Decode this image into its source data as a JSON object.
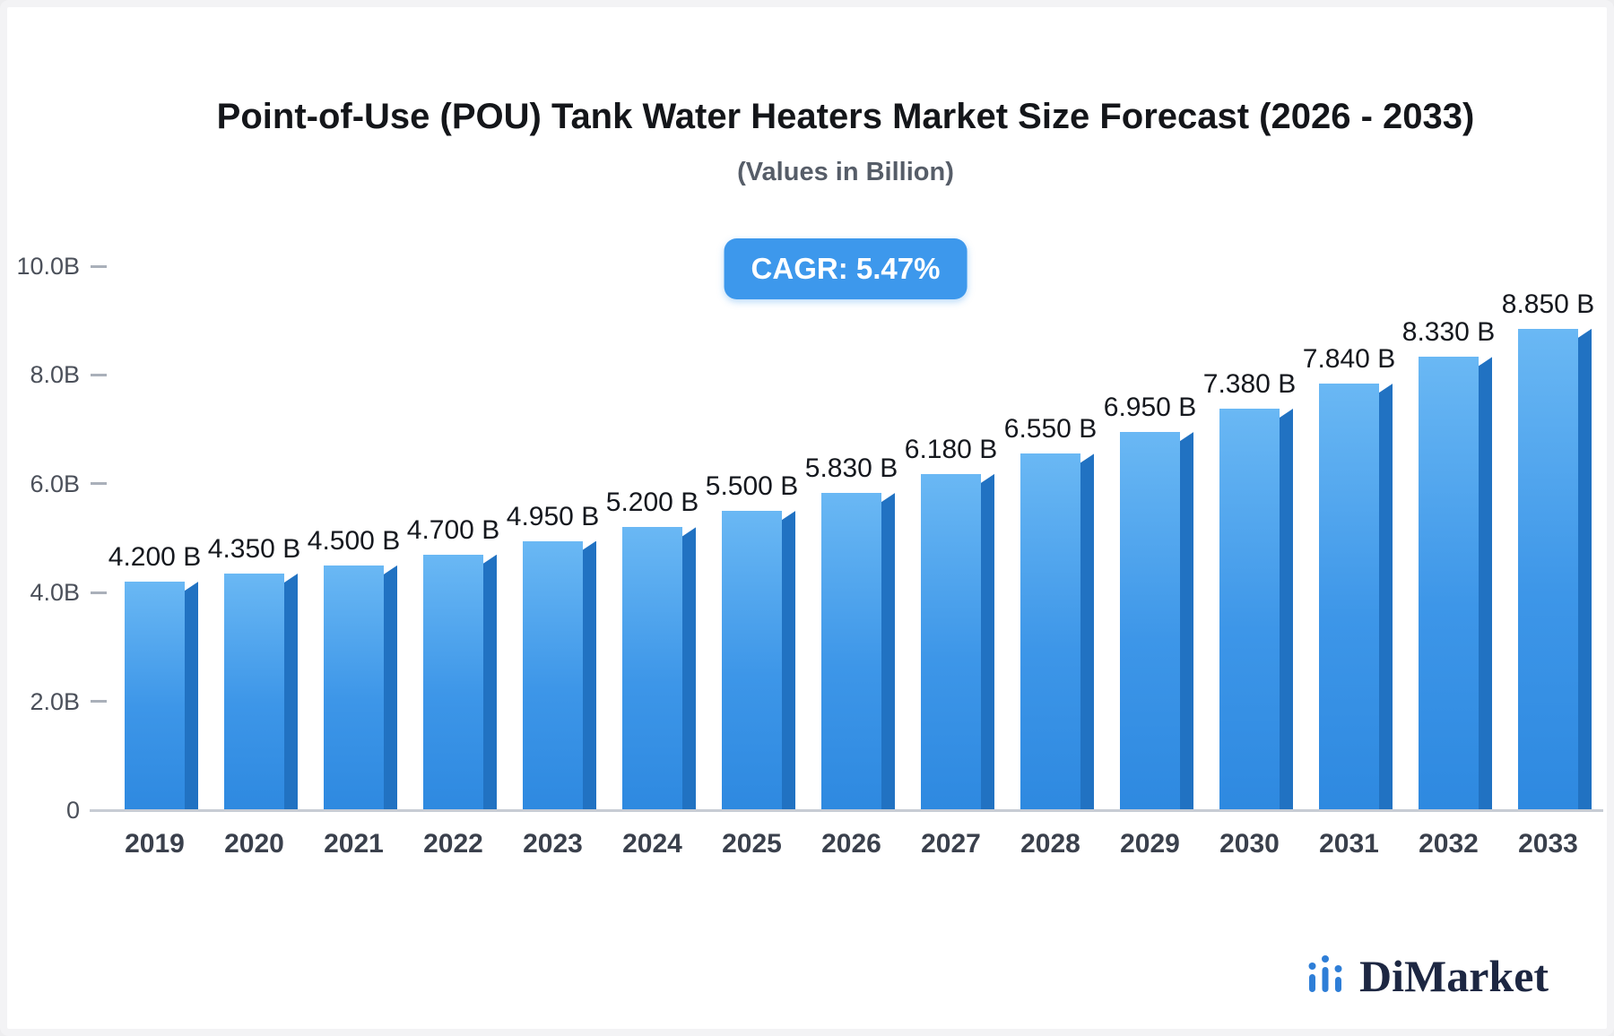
{
  "header": {
    "title": "Point-of-Use (POU) Tank Water Heaters Market Size Forecast (2026 - 2033)",
    "subtitle": "(Values in Billion)",
    "cagr_badge": "CAGR: 5.47%"
  },
  "brand": {
    "name": "DiMarket",
    "icon": "bar-chart-logo-icon",
    "icon_color": "#2e7ed7",
    "text_color": "#1d2742"
  },
  "chart_data": {
    "type": "bar",
    "title": "Point-of-Use (POU) Tank Water Heaters Market Size Forecast (2026 - 2033)",
    "subtitle": "(Values in Billion)",
    "annotation": "CAGR: 5.47%",
    "categories": [
      "2019",
      "2020",
      "2021",
      "2022",
      "2023",
      "2024",
      "2025",
      "2026",
      "2027",
      "2028",
      "2029",
      "2030",
      "2031",
      "2032",
      "2033"
    ],
    "values": [
      4.2,
      4.35,
      4.5,
      4.7,
      4.95,
      5.2,
      5.5,
      5.83,
      6.18,
      6.55,
      6.95,
      7.38,
      7.84,
      8.33,
      8.85
    ],
    "value_labels": [
      "4.200 B",
      "4.350 B",
      "4.500 B",
      "4.700 B",
      "4.950 B",
      "5.200 B",
      "5.500 B",
      "5.830 B",
      "6.180 B",
      "6.550 B",
      "6.950 B",
      "7.380 B",
      "7.840 B",
      "8.330 B",
      "8.850 B"
    ],
    "unit": "Billion",
    "xlabel": "",
    "ylabel": "",
    "ylim": [
      0,
      10
    ],
    "yticks": [
      {
        "value": 0,
        "label": "0"
      },
      {
        "value": 2,
        "label": "2.0B"
      },
      {
        "value": 4,
        "label": "4.0B"
      },
      {
        "value": 6,
        "label": "6.0B"
      },
      {
        "value": 8,
        "label": "8.0B"
      },
      {
        "value": 10,
        "label": "10.0B"
      }
    ],
    "grid": false,
    "legend": false,
    "bar_color_top": "#6ab8f4",
    "bar_color_bottom": "#2e89e0",
    "bar_side_color": "#2172c2",
    "accent_color": "#3d98ec"
  }
}
